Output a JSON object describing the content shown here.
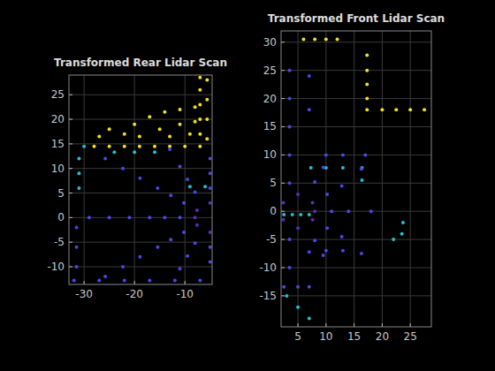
{
  "chart_data": [
    {
      "type": "scatter",
      "title": "Transformed Rear Lidar Scan",
      "xlim": [
        -33,
        -4.6
      ],
      "ylim": [
        -13.6,
        29
      ],
      "xticks": [
        -30,
        -20,
        -10
      ],
      "yticks": [
        -10,
        -5,
        0,
        5,
        10,
        15,
        20,
        25
      ],
      "grid": true,
      "series": [
        {
          "color": "#f0e020",
          "marker": "point",
          "x": [
            -28,
            -25,
            -22,
            -19,
            -16,
            -13,
            -10,
            -7,
            -7,
            -7,
            -7,
            -7,
            -7,
            -5.6,
            -5.6,
            -5.6,
            -5.6,
            -22,
            -20,
            -17,
            -14,
            -11,
            -8,
            -19,
            -15,
            -11,
            -8,
            -13,
            -9,
            -27,
            -25
          ],
          "y": [
            14.5,
            14.5,
            14.5,
            14.5,
            14.5,
            14.5,
            14.5,
            14.5,
            17,
            20,
            23,
            26,
            28.5,
            16,
            20,
            24,
            28,
            17,
            19,
            20.5,
            21.5,
            22,
            22.5,
            16.5,
            18,
            19,
            19.5,
            16.5,
            17,
            16.5,
            18
          ]
        },
        {
          "color": "#20c0d0",
          "marker": "point",
          "x": [
            -31,
            -31,
            -31,
            -30,
            -24,
            -20,
            -16,
            -9,
            -6
          ],
          "y": [
            6,
            9,
            12,
            14.5,
            13.3,
            13.3,
            13.3,
            6.3,
            6.3
          ]
        },
        {
          "color": "#4a48e0",
          "marker": "point",
          "x": [
            -5,
            -8,
            -10.2,
            -11,
            -10.2,
            -8,
            -5,
            -5,
            -9.5,
            -12.8,
            -14,
            -12.8,
            -9.5,
            -5,
            -5,
            -11,
            -15.4,
            -17,
            -15.4,
            -11,
            -13,
            -18.9,
            -21,
            -18.9,
            -22.3,
            -25,
            -22.3,
            -25.8,
            -29,
            -25.8,
            -31.5,
            -31.5,
            -31.5,
            -32,
            -27,
            -22,
            -17,
            -12,
            -7
          ],
          "y": [
            6,
            5.2,
            3,
            0,
            -3,
            -5.2,
            -6,
            9,
            7.8,
            4.5,
            0,
            -4.5,
            -7.8,
            -9,
            12,
            10.4,
            6,
            0,
            -6,
            -10.4,
            13.9,
            8,
            0,
            -8,
            10,
            0,
            -10,
            12,
            0,
            -12,
            -10,
            -6,
            -2,
            -12.8,
            -12.8,
            -12.8,
            -12.8,
            -12.8,
            -12.8
          ]
        },
        {
          "color": "#5a30b0",
          "marker": "point",
          "x": [
            -5,
            -7.6,
            -8,
            -7.6,
            -5
          ],
          "y": [
            3,
            1.5,
            0,
            -1.5,
            -3
          ]
        }
      ]
    },
    {
      "type": "scatter",
      "title": "Transformed Front Lidar Scan",
      "xlim": [
        2,
        28.75
      ],
      "ylim": [
        -20.5,
        32
      ],
      "xticks": [
        5,
        10,
        15,
        20,
        25
      ],
      "yticks": [
        -15,
        -10,
        -5,
        0,
        5,
        10,
        15,
        20,
        25,
        30
      ],
      "grid": true,
      "series": [
        {
          "color": "#f0e020",
          "marker": "point",
          "x": [
            17.3,
            17.3,
            17.3,
            17.3,
            17.3,
            20,
            22.5,
            25,
            27.5,
            6,
            8,
            10,
            12
          ],
          "y": [
            27.7,
            25,
            22.5,
            20,
            18,
            18,
            18,
            18,
            18,
            30.5,
            30.5,
            30.5,
            30.5
          ]
        },
        {
          "color": "#20c0d0",
          "marker": "point",
          "x": [
            2.5,
            4,
            5.5,
            7,
            23.7,
            23.5,
            22,
            7.3,
            10,
            13,
            16.4,
            16.4,
            3,
            5,
            7
          ],
          "y": [
            -0.6,
            -0.6,
            -0.6,
            -0.6,
            -2,
            -4,
            -5,
            7.7,
            7.7,
            7.7,
            7.7,
            5.5,
            -15,
            -17,
            -19
          ]
        },
        {
          "color": "#4a48e0",
          "marker": "point",
          "x": [
            8,
            10.2,
            11,
            10.2,
            8,
            9.5,
            12.8,
            14,
            12.8,
            9.5,
            16.3,
            18,
            16.3,
            3.5,
            3.5,
            3.5,
            3.5,
            3.5,
            3.5,
            3.5,
            7,
            7,
            10,
            13,
            17,
            7,
            7,
            10,
            13,
            2.5,
            5
          ],
          "y": [
            5.2,
            3,
            0,
            -3,
            -5.2,
            7.8,
            4.5,
            0,
            -4.5,
            -7.8,
            7.5,
            0,
            -7.5,
            25,
            20,
            15,
            10,
            5,
            -5,
            -10,
            24,
            18,
            10,
            10,
            10,
            -7.2,
            -13.4,
            -7,
            -7,
            -13.4,
            -13.4
          ]
        },
        {
          "color": "#5a30b0",
          "marker": "point",
          "x": [
            5,
            7.6,
            8,
            7.6,
            5,
            2.4,
            2.4
          ],
          "y": [
            3,
            1.5,
            0,
            -1.5,
            -3,
            1.5,
            -1.5
          ]
        }
      ]
    }
  ]
}
